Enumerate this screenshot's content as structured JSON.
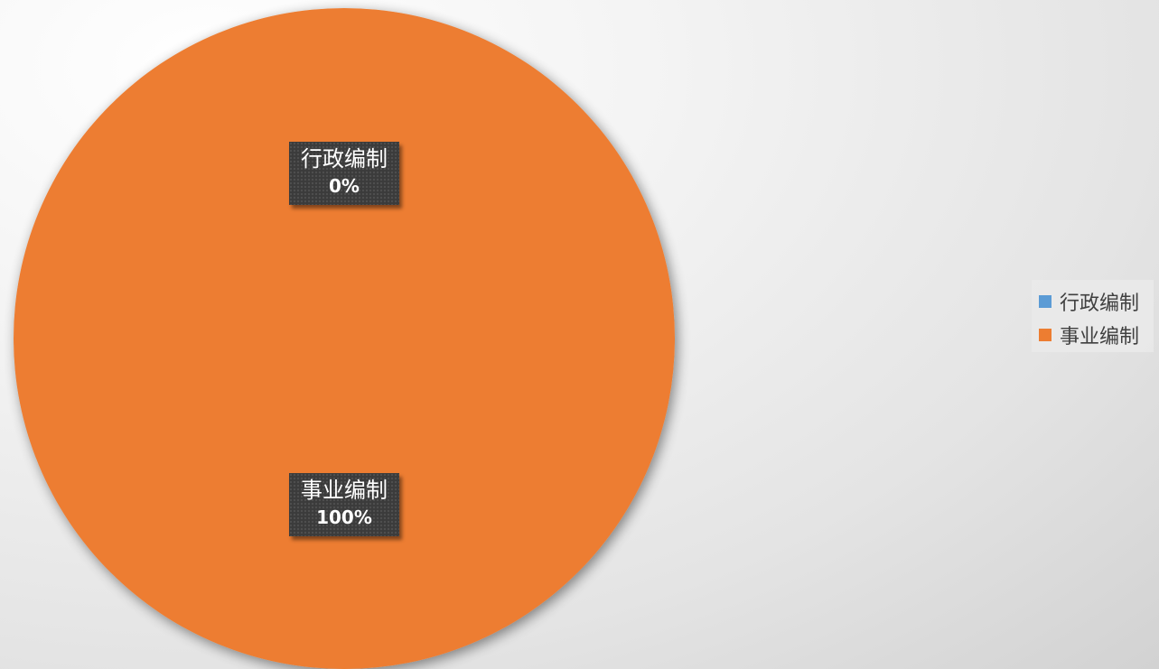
{
  "chart_data": {
    "type": "pie",
    "slices": [
      {
        "label": "行政编制",
        "value": 0,
        "percent_label": "0%",
        "color": "#5B9BD5"
      },
      {
        "label": "事业编制",
        "value": 100,
        "percent_label": "100%",
        "color": "#ED7D31"
      }
    ],
    "legend": {
      "placement": "right",
      "entries": [
        "行政编制",
        "事业编制"
      ]
    }
  }
}
